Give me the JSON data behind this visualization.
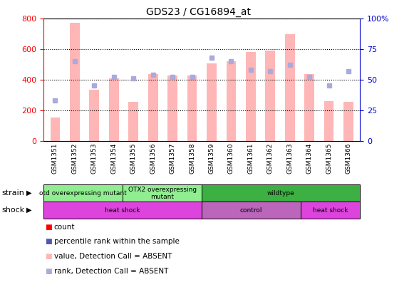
{
  "title": "GDS23 / CG16894_at",
  "samples": [
    "GSM1351",
    "GSM1352",
    "GSM1353",
    "GSM1354",
    "GSM1355",
    "GSM1356",
    "GSM1357",
    "GSM1358",
    "GSM1359",
    "GSM1360",
    "GSM1361",
    "GSM1362",
    "GSM1363",
    "GSM1364",
    "GSM1365",
    "GSM1366"
  ],
  "absent_values": [
    155,
    770,
    335,
    410,
    255,
    435,
    425,
    425,
    505,
    520,
    580,
    590,
    695,
    435,
    260,
    255
  ],
  "absent_ranks": [
    33,
    65,
    45,
    52,
    51,
    54,
    52,
    52,
    68,
    65,
    58,
    57,
    62,
    52,
    45,
    57
  ],
  "ylim_left": [
    0,
    800
  ],
  "ylim_right": [
    0,
    100
  ],
  "yticks_left": [
    0,
    200,
    400,
    600,
    800
  ],
  "yticks_right": [
    0,
    25,
    50,
    75,
    100
  ],
  "strain_groups": [
    {
      "label": "otd overexpressing mutant",
      "start": 0,
      "end": 4,
      "color": "#90EE90"
    },
    {
      "label": "OTX2 overexpressing\nmutant",
      "start": 4,
      "end": 8,
      "color": "#90EE90"
    },
    {
      "label": "wildtype",
      "start": 8,
      "end": 16,
      "color": "#3CB043"
    }
  ],
  "shock_groups": [
    {
      "label": "heat shock",
      "start": 0,
      "end": 8,
      "color": "#CC44CC"
    },
    {
      "label": "control",
      "start": 8,
      "end": 13,
      "color": "#CC44CC"
    },
    {
      "label": "heat shock",
      "start": 13,
      "end": 16,
      "color": "#CC44CC"
    }
  ],
  "legend_items": [
    {
      "label": "count",
      "color": "#FF0000"
    },
    {
      "label": "percentile rank within the sample",
      "color": "#5555AA"
    },
    {
      "label": "value, Detection Call = ABSENT",
      "color": "#FFB6B6"
    },
    {
      "label": "rank, Detection Call = ABSENT",
      "color": "#AAAADD"
    }
  ],
  "absent_bar_color": "#FFB6B6",
  "absent_rank_color": "#AAAADD",
  "count_color": "#FF0000",
  "percentile_color": "#5555AA",
  "left_axis_color": "#FF0000",
  "right_axis_color": "#0000CC"
}
